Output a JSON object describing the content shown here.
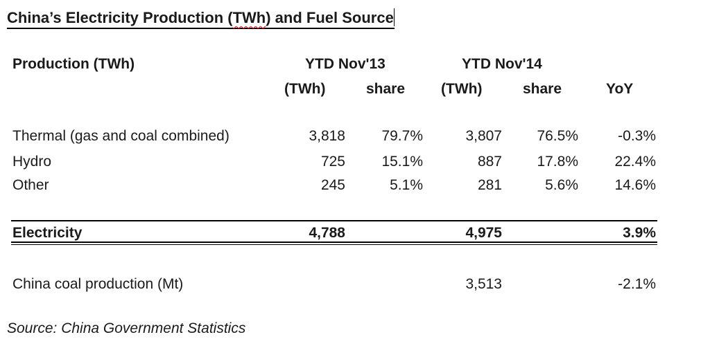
{
  "title": {
    "part1": "China’s Electricity Production (",
    "twh": "TWh",
    "part2": ") and Fuel Source"
  },
  "header": {
    "label": "Production (TWh)",
    "period1": "YTD Nov'13",
    "period2": "YTD Nov'14",
    "unit1": "(TWh)",
    "share1": "share",
    "unit2": "(TWh)",
    "share2": "share",
    "yoy": "YoY"
  },
  "rows": [
    {
      "label": "Thermal (gas and coal combined)",
      "v13": "3,818",
      "s13": "79.7%",
      "v14": "3,807",
      "s14": "76.5%",
      "yoy": "-0.3%"
    },
    {
      "label": "Hydro",
      "v13": "725",
      "s13": "15.1%",
      "v14": "887",
      "s14": "17.8%",
      "yoy": "22.4%"
    },
    {
      "label": "Other",
      "v13": "245",
      "s13": "5.1%",
      "v14": "281",
      "s14": "5.6%",
      "yoy": "14.6%"
    }
  ],
  "total": {
    "label": "Electricity",
    "v13": "4,788",
    "v14": "4,975",
    "yoy": "3.9%"
  },
  "coal": {
    "label": "China coal production (Mt)",
    "v14": "3,513",
    "yoy": "-2.1%"
  },
  "source": "Source: China Government Statistics"
}
